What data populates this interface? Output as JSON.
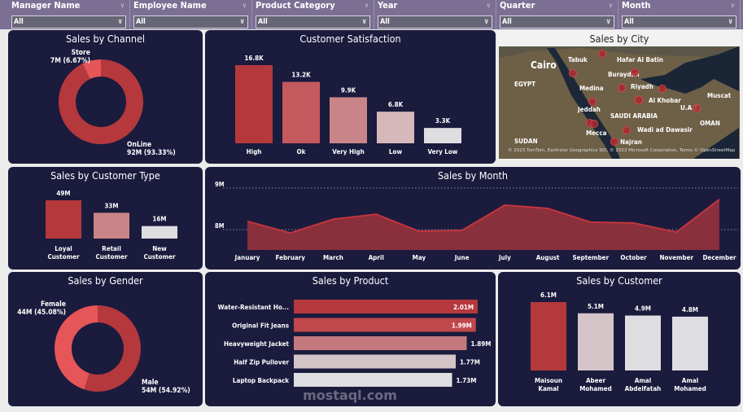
{
  "filters": [
    {
      "label": "Manager Name",
      "value": "All"
    },
    {
      "label": "Employee Name",
      "value": "All"
    },
    {
      "label": "Product Category",
      "value": "All"
    },
    {
      "label": "Year",
      "value": "All"
    },
    {
      "label": "Quarter",
      "value": "All"
    },
    {
      "label": "Month",
      "value": "All"
    }
  ],
  "colors": {
    "panel": "#1a1b3d",
    "filter_bar": "#7b6f94",
    "primary": "#b5383c",
    "light": "#e65557"
  },
  "chart_data": [
    {
      "id": "channel",
      "type": "pie",
      "title": "Sales by Channel",
      "donut": true,
      "slices": [
        {
          "label": "OnLine",
          "value": 92,
          "display": "92M (93.33%)",
          "color": "#b5383c"
        },
        {
          "label": "Store",
          "value": 7,
          "display": "7M (6.67%)",
          "color": "#e65557"
        }
      ]
    },
    {
      "id": "satisfaction",
      "type": "bar",
      "title": "Customer Satisfaction",
      "categories": [
        "High",
        "Ok",
        "Very High",
        "Low",
        "Very Low"
      ],
      "values": [
        16.8,
        13.2,
        9.9,
        6.8,
        3.3
      ],
      "labels": [
        "16.8K",
        "13.2K",
        "9.9K",
        "6.8K",
        "3.3K"
      ],
      "colors": [
        "#b5383c",
        "#c45a5d",
        "#c98487",
        "#d7b8ba",
        "#dedde0"
      ]
    },
    {
      "id": "customer_type",
      "type": "bar",
      "title": "Sales by Customer Type",
      "categories": [
        "Loyal Customer",
        "Retail Customer",
        "New Customer"
      ],
      "values": [
        49,
        33,
        16
      ],
      "labels": [
        "49M",
        "33M",
        "16M"
      ],
      "colors": [
        "#b5383c",
        "#c98487",
        "#dedde0"
      ]
    },
    {
      "id": "month",
      "type": "area",
      "title": "Sales by Month",
      "categories": [
        "January",
        "February",
        "March",
        "April",
        "May",
        "June",
        "July",
        "August",
        "September",
        "October",
        "November",
        "December"
      ],
      "values": [
        8.2,
        7.92,
        8.25,
        8.37,
        7.96,
        7.98,
        8.59,
        8.51,
        8.18,
        8.16,
        7.94,
        8.73
      ],
      "yticks": [
        "9M",
        "8M"
      ],
      "ytick_values": [
        9,
        8
      ],
      "ylim": [
        7.5,
        9.0
      ],
      "grid": true
    },
    {
      "id": "gender",
      "type": "pie",
      "title": "Sales by Gender",
      "donut": true,
      "slices": [
        {
          "label": "Male",
          "value": 54,
          "display": "54M (54.92%)",
          "color": "#b5383c"
        },
        {
          "label": "Female",
          "value": 44,
          "display": "44M (45.08%)",
          "color": "#e65557"
        }
      ]
    },
    {
      "id": "product",
      "type": "bar",
      "orientation": "horizontal",
      "title": "Sales by Product",
      "categories": [
        "Water-Resistant Ho...",
        "Original Fit Jeans",
        "Heavyweight Jacket",
        "Half Zip Pullover",
        "Laptop Backpack"
      ],
      "values": [
        2.01,
        1.99,
        1.89,
        1.77,
        1.73
      ],
      "labels": [
        "2.01M",
        "1.99M",
        "1.89M",
        "1.77M",
        "1.73M"
      ],
      "colors": [
        "#b5383c",
        "#c0474b",
        "#c4797c",
        "#d5c4c7",
        "#dedde0"
      ]
    },
    {
      "id": "customer",
      "type": "bar",
      "title": "Sales by Customer",
      "categories": [
        "Maisoun Kamal",
        "Abeer Mohamed",
        "Amal Abdelfatah",
        "Amal Mohamed"
      ],
      "values": [
        6.1,
        5.1,
        4.9,
        4.8
      ],
      "labels": [
        "6.1M",
        "5.1M",
        "4.9M",
        "4.8M"
      ],
      "colors": [
        "#b5383c",
        "#d5c4c7",
        "#dedde0",
        "#dedde0"
      ]
    }
  ],
  "city_map": {
    "title": "Sales by City",
    "places": [
      "Tabuk",
      "Hafar Al Batin",
      "Cairo",
      "Buraydah",
      "EGYPT",
      "Medina",
      "Riyadh",
      "Al Khobar",
      "Jeddah",
      "SAUDI ARABIA",
      "Mecca",
      "Wadi ad Dawasir",
      "Najran",
      "SUDAN",
      "OMAN",
      "Muscat",
      "U.A.E."
    ],
    "attribution": "© 2023 TomTom, Earthstar Geographics SIO, © 2023 Microsoft Corporation, Terms © OpenStreetMap"
  },
  "watermark": "mostaql.com"
}
